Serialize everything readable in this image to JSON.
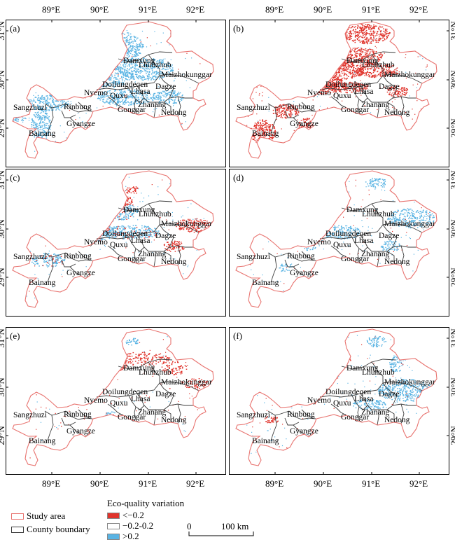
{
  "panels": [
    {
      "label": "(a)",
      "pattern": "pos_broad"
    },
    {
      "label": "(b)",
      "pattern": "neg_broad"
    },
    {
      "label": "(c)",
      "pattern": "mixed"
    },
    {
      "label": "(d)",
      "pattern": "pos_east"
    },
    {
      "label": "(e)",
      "pattern": "neg_north"
    },
    {
      "label": "(f)",
      "pattern": "pos_east2"
    }
  ],
  "axes": {
    "x_ticks": [
      "89°E",
      "90°E",
      "91°E",
      "92°E"
    ],
    "y_ticks": [
      "31°N",
      "30°N",
      "29°N"
    ]
  },
  "counties": [
    "Damxung",
    "Lhunzhub",
    "Maizhokunggar",
    "Doilungdeqen",
    "Nyemo",
    "Lhasa",
    "Dagze",
    "Quxu",
    "Zhanang",
    "Sangzhuzi",
    "Rinbung",
    "Gonggar",
    "Nedong",
    "Gyangze",
    "Bainang"
  ],
  "legend": {
    "title": "Eco-quality variation",
    "study_area": "Study area",
    "county_boundary": "County boundary",
    "classes": [
      {
        "label": "<−0.2",
        "color": "#e0342c"
      },
      {
        "label": "−0.2-0.2",
        "color": "#ffffff"
      },
      {
        "label": ">0.2",
        "color": "#59b3e3"
      }
    ],
    "scalebar": {
      "start": "0",
      "end": "100 km"
    }
  },
  "colors": {
    "neg": "#e0342c",
    "pos": "#59b3e3",
    "study_area": "#e8736f",
    "county": "#3c3c3c"
  }
}
